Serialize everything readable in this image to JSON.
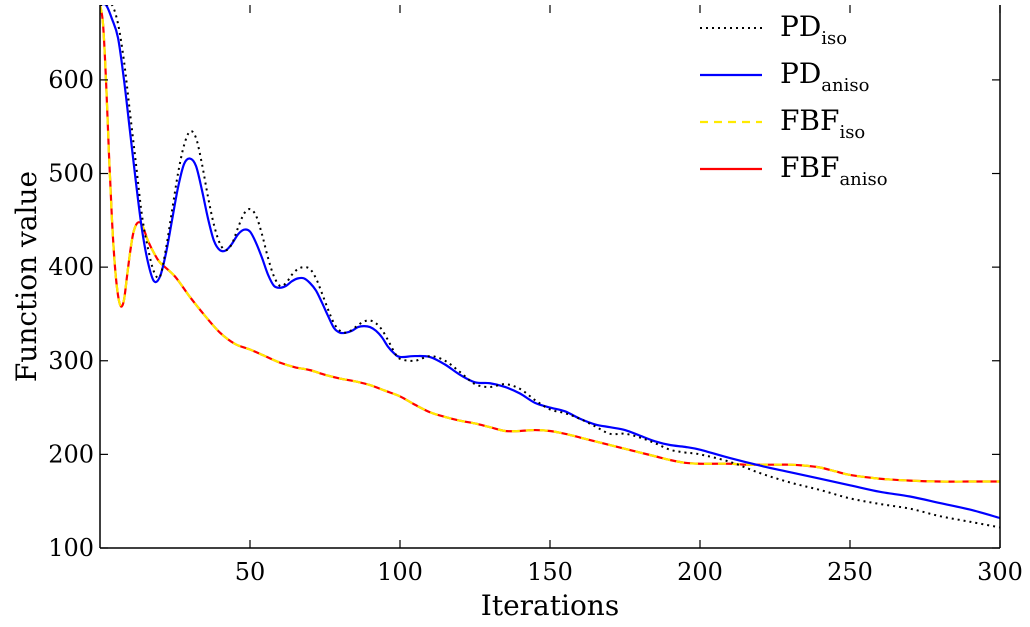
{
  "chart_data": {
    "type": "line",
    "title": "",
    "xlabel": "Iterations",
    "ylabel": "Function value",
    "xlim": [
      0,
      300
    ],
    "ylim": [
      100,
      680
    ],
    "xticks": [
      50,
      100,
      150,
      200,
      250,
      300
    ],
    "yticks": [
      100,
      200,
      300,
      400,
      500,
      600
    ],
    "grid": false,
    "legend_position": "top-right",
    "series": [
      {
        "name": "PD",
        "subscript": "iso",
        "color": "#000000",
        "style": "dotted",
        "x": [
          0,
          2,
          4,
          6,
          8,
          10,
          12,
          14,
          16,
          18,
          20,
          22,
          24,
          26,
          28,
          30,
          32,
          34,
          36,
          38,
          40,
          42,
          44,
          46,
          48,
          50,
          52,
          54,
          56,
          58,
          60,
          62,
          64,
          66,
          68,
          70,
          72,
          74,
          76,
          78,
          80,
          82,
          84,
          86,
          88,
          90,
          92,
          94,
          96,
          98,
          100,
          105,
          110,
          115,
          120,
          125,
          130,
          135,
          140,
          145,
          150,
          155,
          160,
          165,
          170,
          175,
          180,
          185,
          190,
          195,
          200,
          210,
          220,
          230,
          240,
          250,
          260,
          270,
          280,
          290,
          300
        ],
        "y": [
          680,
          680,
          680,
          660,
          620,
          565,
          510,
          455,
          420,
          395,
          390,
          420,
          460,
          500,
          530,
          545,
          538,
          510,
          475,
          445,
          425,
          418,
          425,
          442,
          457,
          462,
          455,
          435,
          410,
          390,
          380,
          383,
          392,
          398,
          400,
          398,
          388,
          372,
          355,
          340,
          332,
          330,
          333,
          338,
          342,
          343,
          340,
          333,
          322,
          310,
          302,
          300,
          305,
          300,
          288,
          275,
          272,
          275,
          270,
          258,
          248,
          244,
          238,
          230,
          222,
          222,
          218,
          212,
          205,
          202,
          200,
          192,
          180,
          170,
          162,
          153,
          147,
          142,
          134,
          128,
          122
        ]
      },
      {
        "name": "PD",
        "subscript": "aniso",
        "color": "#0000ff",
        "style": "solid",
        "x": [
          0,
          2,
          4,
          6,
          8,
          10,
          12,
          14,
          16,
          18,
          20,
          22,
          24,
          26,
          28,
          30,
          32,
          34,
          36,
          38,
          40,
          42,
          44,
          46,
          48,
          50,
          52,
          54,
          56,
          58,
          60,
          62,
          64,
          66,
          68,
          70,
          72,
          74,
          76,
          78,
          80,
          82,
          84,
          86,
          88,
          90,
          92,
          94,
          96,
          98,
          100,
          105,
          110,
          115,
          120,
          125,
          130,
          135,
          140,
          145,
          150,
          155,
          160,
          165,
          170,
          175,
          180,
          185,
          190,
          195,
          200,
          210,
          220,
          230,
          240,
          250,
          260,
          270,
          280,
          290,
          300
        ],
        "y": [
          680,
          680,
          665,
          645,
          600,
          545,
          490,
          440,
          405,
          385,
          390,
          415,
          450,
          485,
          510,
          516,
          508,
          482,
          452,
          428,
          418,
          418,
          425,
          435,
          440,
          438,
          426,
          410,
          392,
          380,
          378,
          380,
          385,
          388,
          388,
          383,
          375,
          362,
          348,
          335,
          330,
          330,
          332,
          336,
          337,
          336,
          332,
          325,
          315,
          308,
          304,
          305,
          304,
          296,
          285,
          277,
          276,
          272,
          265,
          255,
          250,
          246,
          238,
          232,
          229,
          226,
          220,
          214,
          210,
          208,
          205,
          196,
          188,
          181,
          174,
          167,
          160,
          155,
          148,
          141,
          132
        ]
      },
      {
        "name": "FBF",
        "subscript": "iso",
        "color": "#ffea00",
        "style": "dashed",
        "x": [
          0,
          1,
          2,
          3,
          4,
          5,
          6,
          7,
          8,
          9,
          10,
          11,
          12,
          13,
          14,
          15,
          16,
          18,
          20,
          25,
          30,
          35,
          40,
          45,
          50,
          55,
          60,
          65,
          70,
          75,
          80,
          85,
          90,
          95,
          100,
          105,
          110,
          115,
          120,
          125,
          130,
          135,
          140,
          145,
          150,
          155,
          160,
          165,
          170,
          175,
          180,
          185,
          190,
          195,
          200,
          205,
          210,
          215,
          220,
          225,
          230,
          235,
          240,
          245,
          250,
          260,
          270,
          280,
          290,
          300
        ],
        "y": [
          680,
          660,
          600,
          520,
          450,
          400,
          370,
          358,
          365,
          390,
          415,
          435,
          445,
          448,
          445,
          437,
          428,
          415,
          405,
          390,
          368,
          348,
          330,
          318,
          312,
          305,
          298,
          293,
          290,
          285,
          281,
          278,
          274,
          268,
          262,
          253,
          245,
          240,
          236,
          233,
          229,
          225,
          225,
          226,
          225,
          222,
          218,
          214,
          210,
          206,
          202,
          198,
          194,
          191,
          190,
          190,
          190,
          189,
          189,
          189,
          189,
          188,
          186,
          182,
          178,
          174,
          172,
          171,
          171,
          171
        ]
      },
      {
        "name": "FBF",
        "subscript": "aniso",
        "color": "#ff0000",
        "style": "solid",
        "x": [
          0,
          1,
          2,
          3,
          4,
          5,
          6,
          7,
          8,
          9,
          10,
          11,
          12,
          13,
          14,
          15,
          16,
          18,
          20,
          25,
          30,
          35,
          40,
          45,
          50,
          55,
          60,
          65,
          70,
          75,
          80,
          85,
          90,
          95,
          100,
          105,
          110,
          115,
          120,
          125,
          130,
          135,
          140,
          145,
          150,
          155,
          160,
          165,
          170,
          175,
          180,
          185,
          190,
          195,
          200,
          205,
          210,
          215,
          220,
          225,
          230,
          235,
          240,
          245,
          250,
          260,
          270,
          280,
          290,
          300
        ],
        "y": [
          680,
          660,
          600,
          520,
          450,
          400,
          370,
          358,
          365,
          390,
          415,
          435,
          445,
          448,
          445,
          437,
          428,
          415,
          405,
          390,
          368,
          348,
          330,
          318,
          312,
          305,
          298,
          293,
          290,
          285,
          281,
          278,
          274,
          268,
          262,
          253,
          245,
          240,
          236,
          233,
          229,
          225,
          225,
          226,
          225,
          222,
          218,
          214,
          210,
          206,
          202,
          198,
          194,
          191,
          190,
          190,
          190,
          189,
          189,
          189,
          189,
          188,
          186,
          182,
          178,
          174,
          172,
          171,
          171,
          171
        ]
      }
    ]
  }
}
